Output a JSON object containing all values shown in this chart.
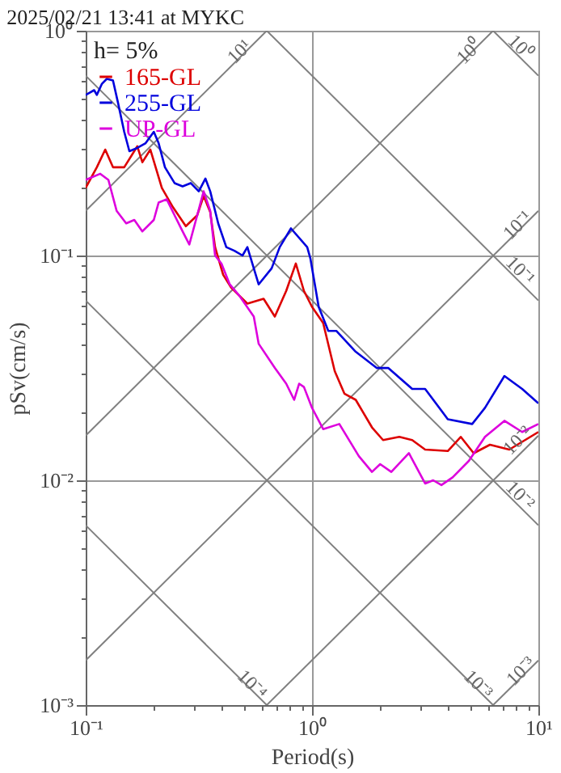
{
  "chart_data": {
    "type": "line",
    "title": "2025/02/21 13:41 at MYKC",
    "xlabel": "Period(s)",
    "ylabel": "pSv(cm/s)",
    "legend_title": "h= 5%",
    "legend": "top left",
    "log": "xy",
    "grid": true,
    "xlim": [
      0.1,
      10
    ],
    "ylim": [
      0.001,
      1
    ],
    "xticks": [
      {
        "value": 0.1,
        "label": "10⁻¹"
      },
      {
        "value": 0.2,
        "label": null
      },
      {
        "value": 0.3,
        "label": null
      },
      {
        "value": 0.4,
        "label": null
      },
      {
        "value": 0.5,
        "label": null
      },
      {
        "value": 0.6,
        "label": null
      },
      {
        "value": 0.7,
        "label": null
      },
      {
        "value": 0.8,
        "label": null
      },
      {
        "value": 0.9,
        "label": null
      },
      {
        "value": 1,
        "label": "10⁰"
      },
      {
        "value": 2,
        "label": null
      },
      {
        "value": 3,
        "label": null
      },
      {
        "value": 4,
        "label": null
      },
      {
        "value": 5,
        "label": null
      },
      {
        "value": 6,
        "label": null
      },
      {
        "value": 7,
        "label": null
      },
      {
        "value": 8,
        "label": null
      },
      {
        "value": 9,
        "label": null
      },
      {
        "value": 10,
        "label": "10¹"
      }
    ],
    "yticks": [
      {
        "value": 0.001,
        "label": "10⁻³"
      },
      {
        "value": 0.002,
        "label": null
      },
      {
        "value": 0.003,
        "label": null
      },
      {
        "value": 0.004,
        "label": null
      },
      {
        "value": 0.005,
        "label": null
      },
      {
        "value": 0.006,
        "label": null
      },
      {
        "value": 0.007,
        "label": null
      },
      {
        "value": 0.008,
        "label": null
      },
      {
        "value": 0.009,
        "label": null
      },
      {
        "value": 0.01,
        "label": "10⁻²"
      },
      {
        "value": 0.02,
        "label": null
      },
      {
        "value": 0.03,
        "label": null
      },
      {
        "value": 0.04,
        "label": null
      },
      {
        "value": 0.05,
        "label": null
      },
      {
        "value": 0.06,
        "label": null
      },
      {
        "value": 0.07,
        "label": null
      },
      {
        "value": 0.08,
        "label": null
      },
      {
        "value": 0.09,
        "label": null
      },
      {
        "value": 0.1,
        "label": "10⁻¹"
      },
      {
        "value": 0.2,
        "label": null
      },
      {
        "value": 0.3,
        "label": null
      },
      {
        "value": 0.4,
        "label": null
      },
      {
        "value": 0.5,
        "label": null
      },
      {
        "value": 0.6,
        "label": null
      },
      {
        "value": 0.7,
        "label": null
      },
      {
        "value": 0.8,
        "label": null
      },
      {
        "value": 0.9,
        "label": null
      },
      {
        "value": 1,
        "label": "10⁰"
      }
    ],
    "annotations": [
      {
        "text": "10¹",
        "x": 0.477,
        "y": 0.81
      },
      {
        "text": "10⁰",
        "x": 4.93,
        "y": 0.81
      },
      {
        "text": "10⁻¹",
        "x": 8.07,
        "y": 0.137
      },
      {
        "text": "10⁻²",
        "x": 8.07,
        "y": 0.0151
      },
      {
        "text": "10⁻³",
        "x": 8.34,
        "y": 0.00142
      },
      {
        "text": "10⁰",
        "x": 8.34,
        "y": 0.85
      },
      {
        "text": "10⁻¹",
        "x": 8.34,
        "y": 0.086
      },
      {
        "text": "10⁻²",
        "x": 8.34,
        "y": 0.0086
      },
      {
        "text": "10⁻³",
        "x": 5.44,
        "y": 0.00124
      },
      {
        "text": "10⁻⁴",
        "x": 0.545,
        "y": 0.00124
      }
    ],
    "series": [
      {
        "color": "#808080",
        "x": [
          0.1,
          0.631
        ],
        "values": [
          0.158,
          1
        ]
      },
      {
        "color": "#808080",
        "x": [
          0.1,
          6.31
        ],
        "values": [
          0.0158,
          1
        ]
      },
      {
        "color": "#808080",
        "x": [
          0.1,
          10
        ],
        "values": [
          0.00158,
          0.158
        ]
      },
      {
        "color": "#808080",
        "x": [
          0.631,
          10
        ],
        "values": [
          0.001,
          0.0158
        ]
      },
      {
        "color": "#808080",
        "x": [
          6.31,
          10
        ],
        "values": [
          0.001,
          0.00158
        ]
      },
      {
        "color": "#808080",
        "x": [
          6.31,
          10
        ],
        "values": [
          1,
          0.631
        ]
      },
      {
        "color": "#808080",
        "x": [
          0.631,
          10
        ],
        "values": [
          1,
          0.0631
        ]
      },
      {
        "color": "#808080",
        "x": [
          0.1,
          10
        ],
        "values": [
          0.631,
          0.00631
        ]
      },
      {
        "color": "#808080",
        "x": [
          0.1,
          6.31
        ],
        "values": [
          0.0631,
          0.001
        ]
      },
      {
        "color": "#808080",
        "x": [
          0.1,
          0.631
        ],
        "values": [
          0.00631,
          0.001
        ]
      },
      {
        "name": "165-GL",
        "color": "#dd0000",
        "x": [
          0.1,
          0.112,
          0.122,
          0.132,
          0.148,
          0.169,
          0.178,
          0.193,
          0.217,
          0.243,
          0.277,
          0.311,
          0.332,
          0.355,
          0.373,
          0.405,
          0.439,
          0.518,
          0.611,
          0.685,
          0.769,
          0.848,
          0.921,
          1.0,
          1.12,
          1.26,
          1.39,
          1.56,
          1.84,
          2.06,
          2.43,
          2.77,
          3.16,
          3.98,
          4.54,
          5.18,
          6.11,
          7.44,
          10
        ],
        "values": [
          0.2,
          0.247,
          0.296,
          0.247,
          0.247,
          0.306,
          0.26,
          0.296,
          0.2,
          0.164,
          0.135,
          0.151,
          0.184,
          0.156,
          0.109,
          0.0821,
          0.072,
          0.0611,
          0.0642,
          0.0535,
          0.0696,
          0.0921,
          0.0696,
          0.0591,
          0.0501,
          0.0306,
          0.0243,
          0.0228,
          0.0172,
          0.0151,
          0.0156,
          0.0151,
          0.0137,
          0.0135,
          0.0156,
          0.0132,
          0.0144,
          0.0137,
          0.0164
        ]
      },
      {
        "name": "255-GL",
        "color": "#0000dd",
        "x": [
          0.1,
          0.109,
          0.112,
          0.118,
          0.124,
          0.132,
          0.139,
          0.148,
          0.156,
          0.169,
          0.184,
          0.2,
          0.21,
          0.224,
          0.247,
          0.268,
          0.291,
          0.316,
          0.338,
          0.355,
          0.385,
          0.418,
          0.454,
          0.493,
          0.518,
          0.581,
          0.663,
          0.72,
          0.807,
          0.952,
          0.984,
          1.07,
          1.18,
          1.28,
          1.56,
          1.93,
          2.17,
          2.77,
          3.16,
          3.98,
          5.1,
          5.81,
          7.08,
          8.48,
          10
        ],
        "values": [
          0.518,
          0.544,
          0.518,
          0.581,
          0.611,
          0.601,
          0.477,
          0.355,
          0.291,
          0.301,
          0.316,
          0.355,
          0.316,
          0.247,
          0.21,
          0.203,
          0.21,
          0.193,
          0.22,
          0.193,
          0.139,
          0.109,
          0.105,
          0.1,
          0.109,
          0.0744,
          0.0877,
          0.109,
          0.132,
          0.109,
          0.0968,
          0.0591,
          0.0462,
          0.0462,
          0.0373,
          0.0316,
          0.0316,
          0.0255,
          0.0255,
          0.0187,
          0.0178,
          0.021,
          0.0291,
          0.0255,
          0.022
        ]
      },
      {
        "name": "UP-GL",
        "color": "#dd00dd",
        "x": [
          0.1,
          0.116,
          0.126,
          0.137,
          0.151,
          0.164,
          0.178,
          0.2,
          0.21,
          0.228,
          0.247,
          0.268,
          0.287,
          0.311,
          0.332,
          0.355,
          0.373,
          0.398,
          0.433,
          0.477,
          0.553,
          0.581,
          0.685,
          0.769,
          0.834,
          0.877,
          0.921,
          1.0,
          1.12,
          1.32,
          1.61,
          1.84,
          2.0,
          2.24,
          2.68,
          3.16,
          3.43,
          3.73,
          4.18,
          4.93,
          5.81,
          7.08,
          8.48,
          10
        ],
        "values": [
          0.217,
          0.231,
          0.217,
          0.158,
          0.139,
          0.144,
          0.128,
          0.144,
          0.172,
          0.178,
          0.151,
          0.128,
          0.112,
          0.151,
          0.193,
          0.158,
          0.1,
          0.0921,
          0.0744,
          0.0663,
          0.0535,
          0.0405,
          0.0316,
          0.0269,
          0.0228,
          0.0269,
          0.026,
          0.021,
          0.0169,
          0.0178,
          0.0128,
          0.0109,
          0.0118,
          0.0109,
          0.0132,
          0.00968,
          0.01,
          0.00952,
          0.0103,
          0.0122,
          0.0156,
          0.0184,
          0.0164,
          0.0178
        ]
      }
    ]
  }
}
